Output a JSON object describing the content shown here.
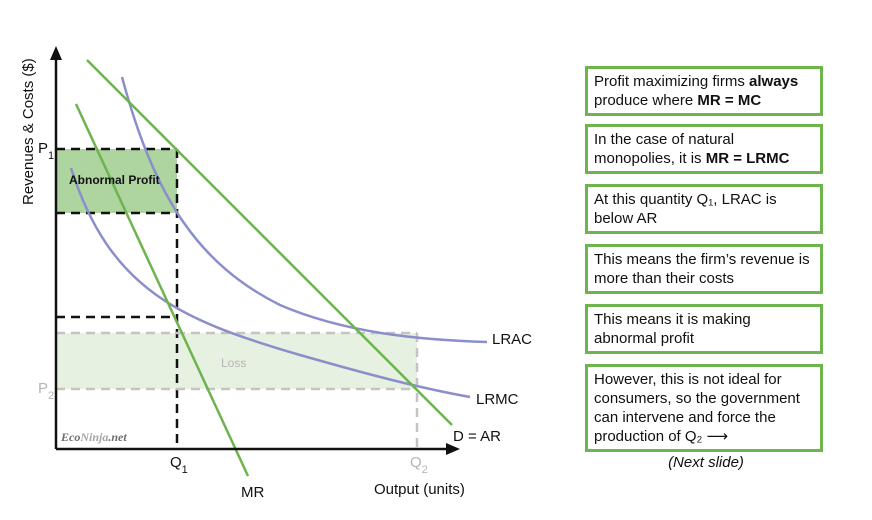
{
  "axes": {
    "y_label": "Revenues & Costs ($)",
    "x_label": "Output (units)",
    "p1_label": "P",
    "p1_sub": "1",
    "p2_label": "P",
    "p2_sub": "2",
    "q1_label": "Q",
    "q1_sub": "1",
    "q2_label": "Q",
    "q2_sub": "2"
  },
  "curves": {
    "lrac": "LRAC",
    "lrmc": "LRMC",
    "demand": "D = AR",
    "mr": "MR"
  },
  "areas": {
    "profit": "Abnormal Profit",
    "loss": "Loss"
  },
  "watermark": {
    "eco": "Eco",
    "ninja": "Ninja",
    "net": ".net"
  },
  "colors": {
    "green_line": "#6db34e",
    "purple_curve": "#8a8fcc",
    "profit_fill": "#aed4a0",
    "loss_fill": "#e6f1e1",
    "grey_text": "#b5b5b5"
  },
  "notes": [
    {
      "pre": "Profit maximizing firms ",
      "bold": "always",
      "mid": " produce where ",
      "bold2": "MR = MC",
      "post": ""
    },
    {
      "pre": "In the case of natural monopolies, it is ",
      "bold": "MR = LRMC",
      "mid": "",
      "bold2": "",
      "post": ""
    },
    {
      "pre": "At this quantity Q₁, LRAC is below AR",
      "bold": "",
      "mid": "",
      "bold2": "",
      "post": ""
    },
    {
      "pre": "This means the firm’s revenue is more than their costs",
      "bold": "",
      "mid": "",
      "bold2": "",
      "post": ""
    },
    {
      "pre": "This means it is making abnormal profit",
      "bold": "",
      "mid": "",
      "bold2": "",
      "post": ""
    },
    {
      "pre": "However, this is not ideal for consumers, so the government can intervene and force the production of Q₂ ⟶",
      "bold": "",
      "mid": "",
      "bold2": "",
      "post": ""
    }
  ],
  "next_slide": "(Next slide)"
}
